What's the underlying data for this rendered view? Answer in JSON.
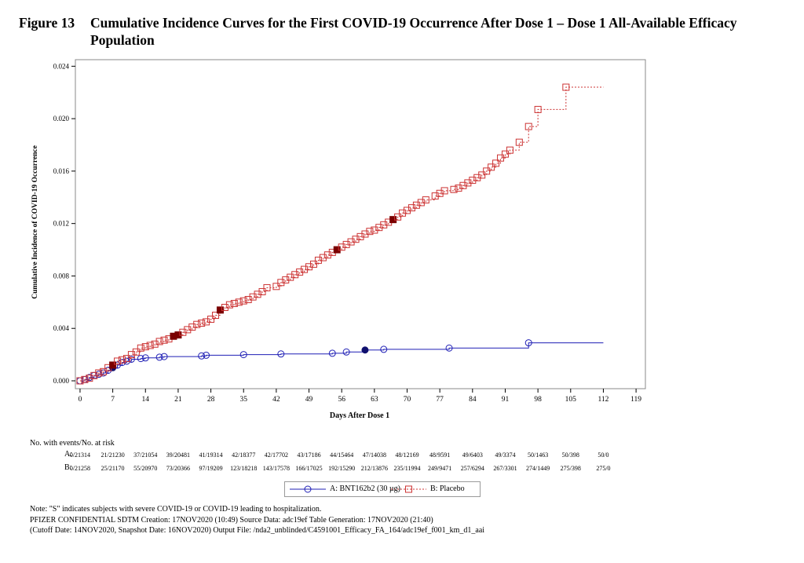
{
  "figure": {
    "number": "Figure 13",
    "title": "Cumulative Incidence Curves for the First COVID-19 Occurrence After Dose 1 – Dose 1 All-Available Efficacy Population"
  },
  "colors": {
    "series_a": "#1f1fb5",
    "series_b": "#cc3333",
    "severe_a": "#10106e",
    "severe_b": "#7a0000"
  },
  "chart_data": {
    "type": "line",
    "title": "",
    "xlabel": "Days After Dose 1",
    "ylabel": "Cumulative Incidence of COVID-19 Occurrence",
    "xlim": [
      -1,
      121
    ],
    "ylim": [
      -0.0006,
      0.0245
    ],
    "x_ticks": [
      "0",
      "7",
      "14",
      "21",
      "28",
      "35",
      "42",
      "49",
      "56",
      "63",
      "70",
      "77",
      "84",
      "91",
      "98",
      "105",
      "112",
      "119"
    ],
    "x_tick_values": [
      0,
      7,
      14,
      21,
      28,
      35,
      42,
      49,
      56,
      63,
      70,
      77,
      84,
      91,
      98,
      105,
      112,
      119
    ],
    "y_ticks": [
      "0.000",
      "0.004",
      "0.008",
      "0.012",
      "0.016",
      "0.020",
      "0.024"
    ],
    "y_tick_values": [
      0,
      0.004,
      0.008,
      0.012,
      0.016,
      0.02,
      0.024
    ],
    "series": [
      {
        "name": "A: BNT162b2 (30 µg)",
        "line_style": "solid",
        "marker": "circle",
        "end_day": 112,
        "points": [
          [
            0,
            0
          ],
          [
            1,
            0.0001
          ],
          [
            2,
            0.00025
          ],
          [
            3,
            0.0004
          ],
          [
            4,
            0.0005
          ],
          [
            5,
            0.0006
          ],
          [
            6,
            0.0008
          ],
          [
            7,
            0.001
          ],
          [
            8,
            0.0012
          ],
          [
            9,
            0.0014
          ],
          [
            10,
            0.0015
          ],
          [
            11,
            0.00165
          ],
          [
            13,
            0.0017
          ],
          [
            14,
            0.00175
          ],
          [
            17,
            0.0018
          ],
          [
            18,
            0.00185
          ],
          [
            26,
            0.0019
          ],
          [
            27,
            0.00195
          ],
          [
            35,
            0.002
          ],
          [
            43,
            0.00205
          ],
          [
            54,
            0.0021
          ],
          [
            57,
            0.0022
          ],
          [
            61,
            0.00235
          ],
          [
            65,
            0.0024
          ],
          [
            79,
            0.0025
          ],
          [
            96,
            0.0029
          ]
        ],
        "severe_days": [
          7,
          61
        ]
      },
      {
        "name": "B: Placebo",
        "line_style": "dashed",
        "marker": "square",
        "end_day": 112,
        "points": [
          [
            0,
            0
          ],
          [
            1,
            0.0001
          ],
          [
            2,
            0.0002
          ],
          [
            3,
            0.0004
          ],
          [
            4,
            0.0006
          ],
          [
            5,
            0.0007
          ],
          [
            6,
            0.001
          ],
          [
            7,
            0.0012
          ],
          [
            8,
            0.0015
          ],
          [
            9,
            0.0016
          ],
          [
            10,
            0.0017
          ],
          [
            11,
            0.002
          ],
          [
            12,
            0.0022
          ],
          [
            13,
            0.0025
          ],
          [
            14,
            0.0026
          ],
          [
            15,
            0.0027
          ],
          [
            16,
            0.0028
          ],
          [
            17,
            0.003
          ],
          [
            18,
            0.0031
          ],
          [
            19,
            0.0032
          ],
          [
            20,
            0.0034
          ],
          [
            21,
            0.0035
          ],
          [
            22,
            0.0037
          ],
          [
            23,
            0.0039
          ],
          [
            24,
            0.0041
          ],
          [
            25,
            0.0043
          ],
          [
            26,
            0.0044
          ],
          [
            27,
            0.0045
          ],
          [
            28,
            0.0047
          ],
          [
            29,
            0.005
          ],
          [
            30,
            0.0054
          ],
          [
            31,
            0.0056
          ],
          [
            32,
            0.0058
          ],
          [
            33,
            0.0059
          ],
          [
            34,
            0.006
          ],
          [
            35,
            0.0061
          ],
          [
            36,
            0.0062
          ],
          [
            37,
            0.0064
          ],
          [
            38,
            0.0066
          ],
          [
            39,
            0.0068
          ],
          [
            40,
            0.0071
          ],
          [
            42,
            0.0072
          ],
          [
            43,
            0.0075
          ],
          [
            44,
            0.0077
          ],
          [
            45,
            0.0079
          ],
          [
            46,
            0.0081
          ],
          [
            47,
            0.0083
          ],
          [
            48,
            0.0085
          ],
          [
            49,
            0.0087
          ],
          [
            50,
            0.0089
          ],
          [
            51,
            0.0092
          ],
          [
            52,
            0.0094
          ],
          [
            53,
            0.0096
          ],
          [
            54,
            0.0098
          ],
          [
            55,
            0.01
          ],
          [
            56,
            0.0102
          ],
          [
            57,
            0.0104
          ],
          [
            58,
            0.0106
          ],
          [
            59,
            0.0108
          ],
          [
            60,
            0.011
          ],
          [
            61,
            0.0112
          ],
          [
            62,
            0.0114
          ],
          [
            63,
            0.0115
          ],
          [
            64,
            0.0117
          ],
          [
            65,
            0.0119
          ],
          [
            66,
            0.0121
          ],
          [
            67,
            0.0123
          ],
          [
            68,
            0.0125
          ],
          [
            69,
            0.0128
          ],
          [
            70,
            0.013
          ],
          [
            71,
            0.0132
          ],
          [
            72,
            0.0134
          ],
          [
            73,
            0.0136
          ],
          [
            74,
            0.0138
          ],
          [
            76,
            0.0141
          ],
          [
            77,
            0.0143
          ],
          [
            78,
            0.0145
          ],
          [
            80,
            0.0146
          ],
          [
            81,
            0.0147
          ],
          [
            82,
            0.0149
          ],
          [
            83,
            0.0151
          ],
          [
            84,
            0.0153
          ],
          [
            85,
            0.0155
          ],
          [
            86,
            0.0157
          ],
          [
            87,
            0.016
          ],
          [
            88,
            0.0163
          ],
          [
            89,
            0.0166
          ],
          [
            90,
            0.017
          ],
          [
            91,
            0.0173
          ],
          [
            92,
            0.0176
          ],
          [
            94,
            0.0182
          ],
          [
            96,
            0.0194
          ],
          [
            98,
            0.0207
          ],
          [
            104,
            0.0224
          ]
        ],
        "severe_days": [
          7,
          20,
          21,
          30,
          55,
          67
        ]
      }
    ]
  },
  "risk_table": {
    "header": "No. with events/No. at risk",
    "rows": [
      {
        "label": "A:",
        "values": [
          "0/21314",
          "21/21230",
          "37/21054",
          "39/20481",
          "41/19314",
          "42/18377",
          "42/17702",
          "43/17186",
          "44/15464",
          "47/14038",
          "48/12169",
          "48/9591",
          "49/6403",
          "49/3374",
          "50/1463",
          "50/398",
          "50/0"
        ]
      },
      {
        "label": "B:",
        "values": [
          "0/21258",
          "25/21170",
          "55/20970",
          "73/20366",
          "97/19209",
          "123/18218",
          "143/17578",
          "166/17025",
          "192/15290",
          "212/13876",
          "235/11994",
          "249/9471",
          "257/6294",
          "267/3301",
          "274/1449",
          "275/398",
          "275/0"
        ]
      }
    ]
  },
  "legend": {
    "a_label": "A: BNT162b2 (30 µg)",
    "b_label": "B: Placebo"
  },
  "notes": [
    "Note: \"S\" indicates subjects with severe COVID-19 or COVID-19 leading to hospitalization.",
    "PFIZER CONFIDENTIAL  SDTM Creation: 17NOV2020 (10:49)  Source Data: adc19ef  Table Generation: 17NOV2020 (21:40)",
    "(Cutoff Date: 14NOV2020, Snapshot Date: 16NOV2020) Output File: /nda2_unblinded/C4591001_Efficacy_FA_164/adc19ef_f001_km_d1_aai"
  ]
}
